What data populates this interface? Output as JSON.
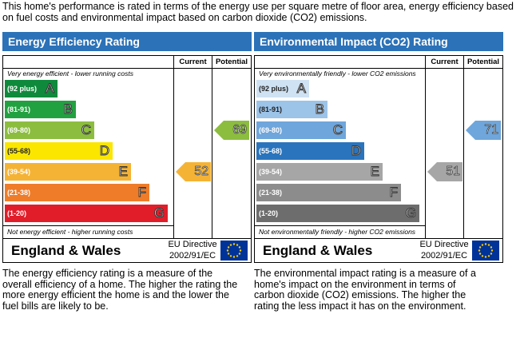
{
  "intro": "This home's performance is rated in terms of the energy use per square metre of floor area, energy efficiency based on fuel costs and environmental impact based on carbon dioxide (CO2) emissions.",
  "columns": {
    "current": "Current",
    "potential": "Potential"
  },
  "panels": [
    {
      "title": "Energy Efficiency Rating",
      "top_caption": "Very energy efficient - lower running costs",
      "bottom_caption": "Not energy efficient - higher running costs",
      "bands": [
        {
          "range": "(92 plus)",
          "grade": "A",
          "color": "#0f8a3c"
        },
        {
          "range": "(81-91)",
          "grade": "B",
          "color": "#22a140"
        },
        {
          "range": "(69-80)",
          "grade": "C",
          "color": "#8cbd3f"
        },
        {
          "range": "(55-68)",
          "grade": "D",
          "color": "#fbe600",
          "dark": true
        },
        {
          "range": "(39-54)",
          "grade": "E",
          "color": "#f5b335"
        },
        {
          "range": "(21-38)",
          "grade": "F",
          "color": "#ef7c29"
        },
        {
          "range": "(1-20)",
          "grade": "G",
          "color": "#e21d2a"
        }
      ],
      "current": {
        "value": "52",
        "band_index": 4,
        "color": "#f5b335"
      },
      "potential": {
        "value": "69",
        "band_index": 2,
        "color": "#8cbd3f"
      },
      "country": "England & Wales",
      "directive": "EU Directive 2002/91/EC",
      "description": "The energy efficiency rating is a measure of the overall efficiency of a home. The higher the rating the more energy efficient the home is and the lower the fuel bills are likely to be."
    },
    {
      "title": "Environmental Impact (CO2) Rating",
      "top_caption": "Very environmentally friendly - lower CO2 emissions",
      "bottom_caption": "Not environmentally friendly - higher CO2 emissions",
      "bands": [
        {
          "range": "(92 plus)",
          "grade": "A",
          "color": "#cfe2f3",
          "dark": true
        },
        {
          "range": "(81-91)",
          "grade": "B",
          "color": "#9cc3e8",
          "dark": true
        },
        {
          "range": "(69-80)",
          "grade": "C",
          "color": "#6fa6db"
        },
        {
          "range": "(55-68)",
          "grade": "D",
          "color": "#2a74bd"
        },
        {
          "range": "(39-54)",
          "grade": "E",
          "color": "#a6a6a6"
        },
        {
          "range": "(21-38)",
          "grade": "F",
          "color": "#8c8c8c"
        },
        {
          "range": "(1-20)",
          "grade": "G",
          "color": "#6d6d6d"
        }
      ],
      "current": {
        "value": "51",
        "band_index": 4,
        "color": "#a6a6a6"
      },
      "potential": {
        "value": "71",
        "band_index": 2,
        "color": "#6fa6db"
      },
      "country": "England & Wales",
      "directive": "EU Directive 2002/91/EC",
      "description": "The environmental impact rating is a measure of a home's impact on the environment in terms of carbon dioxide (CO2) emissions. The higher the rating the less impact it has on the environment."
    }
  ]
}
